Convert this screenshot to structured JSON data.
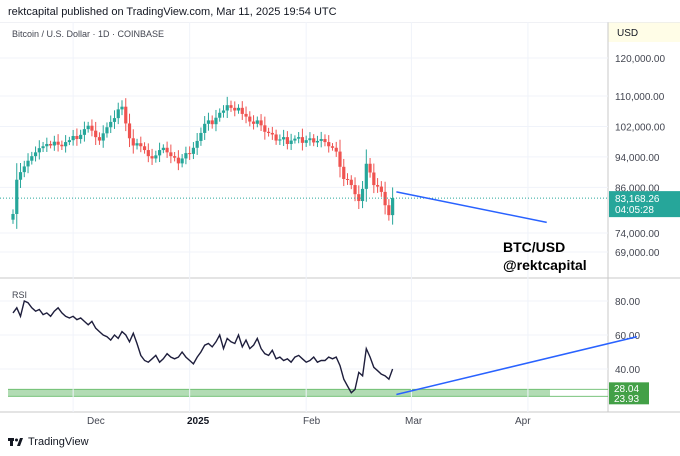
{
  "header": {
    "published": "rektcapital published on TradingView.com, Mar 11, 2025 19:54 UTC"
  },
  "footer": {
    "brand": "TradingView"
  },
  "chart_data": [
    {
      "type": "candlestick",
      "symbol_label": "Bitcoin / U.S. Dollar · 1D · COINBASE",
      "currency": "USD",
      "y_ticks": [
        {
          "value": 120000,
          "label": "120,000.00"
        },
        {
          "value": 110000,
          "label": "110,000.00"
        },
        {
          "value": 102000,
          "label": "102,000.00"
        },
        {
          "value": 94000,
          "label": "94,000.00"
        },
        {
          "value": 86000,
          "label": "86,000.00"
        },
        {
          "value": 74000,
          "label": "74,000.00"
        },
        {
          "value": 69000,
          "label": "69,000.00"
        }
      ],
      "last_price": {
        "value": 83168.26,
        "label": "83,168.26",
        "countdown": "04:05:28"
      },
      "annotation_lines": [
        "BTC/USD",
        "@rektcapital"
      ],
      "closes": [
        79000,
        88000,
        90000,
        91500,
        93000,
        94200,
        95200,
        96300,
        96800,
        97400,
        97000,
        98000,
        97200,
        96800,
        97900,
        98400,
        99500,
        98700,
        99800,
        101300,
        102200,
        100900,
        99200,
        98300,
        100200,
        101800,
        103200,
        104200,
        106500,
        107200,
        102800,
        98900,
        97000,
        97600,
        96800,
        95800,
        94200,
        93600,
        94400,
        95800,
        96400,
        95200,
        94200,
        93800,
        92300,
        93600,
        95000,
        94800,
        96400,
        98200,
        100300,
        102700,
        103600,
        102600,
        104300,
        105600,
        106200,
        107600,
        106900,
        106200,
        106900,
        105300,
        104600,
        103300,
        102700,
        103600,
        102300,
        100600,
        100300,
        99900,
        98300,
        98600,
        99200,
        97400,
        98300,
        98800,
        99200,
        97700,
        98400,
        98900,
        97800,
        98200,
        98700,
        97900,
        96800,
        96400,
        95400,
        91400,
        88200,
        88000,
        86600,
        84200,
        82400,
        85600,
        92200,
        89900,
        86600,
        86200,
        84800,
        81300,
        78700,
        83200
      ],
      "channel_line": {
        "points": [
          [
            "2025-02-25",
            84800
          ],
          [
            "2025-04-06",
            76800
          ]
        ],
        "color": "#2962ff"
      },
      "colors": {
        "up": "#26a69a",
        "down": "#ef5350",
        "accent": "#26a69a"
      }
    },
    {
      "type": "line",
      "series_label": "RSI",
      "y_ticks": [
        {
          "value": 80,
          "label": "80.00"
        },
        {
          "value": 60,
          "label": "60.00"
        },
        {
          "value": 40,
          "label": "40.00"
        }
      ],
      "band_labels": [
        {
          "value": 28.04,
          "label": "28.04"
        },
        {
          "value": 23.93,
          "label": "23.93"
        }
      ],
      "values": [
        73,
        76,
        71,
        80,
        79,
        76,
        74,
        75,
        72,
        73,
        71,
        74,
        76,
        73,
        71,
        70,
        71,
        69,
        70,
        68,
        66,
        68,
        64,
        62,
        60,
        59,
        57,
        60,
        58,
        62,
        60,
        56,
        61,
        55,
        48,
        45,
        44,
        46,
        48,
        44,
        46,
        49,
        47,
        46,
        47,
        50,
        47,
        45,
        43,
        47,
        50,
        54,
        55,
        53,
        56,
        60,
        52,
        58,
        56,
        55,
        60,
        53,
        57,
        52,
        54,
        58,
        52,
        49,
        48,
        51,
        46,
        47,
        45,
        46,
        44,
        47,
        48,
        46,
        44,
        45,
        47,
        44,
        45,
        45,
        47,
        46,
        47,
        42,
        34,
        30,
        26,
        28,
        38,
        36,
        52,
        47,
        41,
        39,
        37,
        36,
        34,
        40
      ],
      "trend_line": {
        "points": [
          [
            "2025-02-25",
            25
          ],
          [
            "2025-04-30",
            59
          ]
        ],
        "color": "#2962ff"
      },
      "oversold_band": [
        23.93,
        28.04
      ],
      "colors": {
        "line": "#1e1e3c",
        "band": "#a5d6a7"
      }
    }
  ],
  "x_axis": {
    "labels": [
      "Dec",
      "2025",
      "Feb",
      "Mar",
      "Apr"
    ]
  }
}
